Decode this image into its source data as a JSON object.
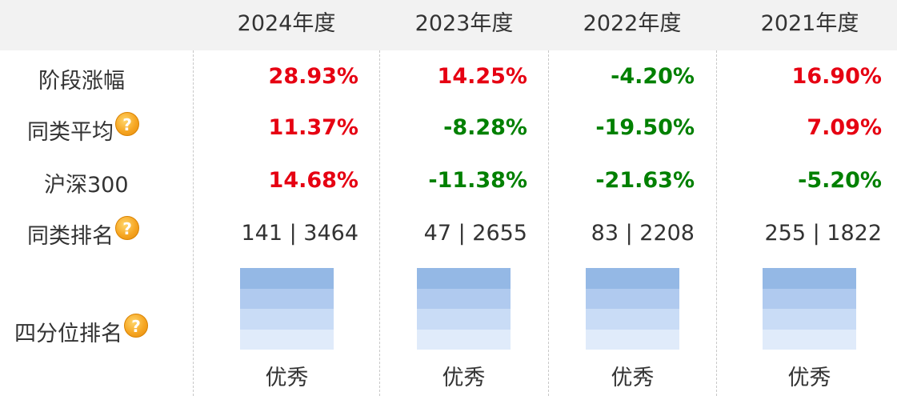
{
  "header": {
    "columns": [
      "2024年度",
      "2023年度",
      "2022年度",
      "2021年度"
    ]
  },
  "colors": {
    "up": "#e60012",
    "down": "#008000",
    "neutral": "#333333",
    "quartile_bands": [
      "#94b8e5",
      "#b0caef",
      "#c9dcf6",
      "#e0ebfa"
    ]
  },
  "rows": {
    "period_change": {
      "label": "阶段涨幅",
      "values": [
        "28.93%",
        "14.25%",
        "-4.20%",
        "16.90%"
      ]
    },
    "peer_average": {
      "label": "同类平均",
      "help_icon": "help-icon",
      "values": [
        "11.37%",
        "-8.28%",
        "-19.50%",
        "7.09%"
      ]
    },
    "csi300": {
      "label": "沪深300",
      "values": [
        "14.68%",
        "-11.38%",
        "-21.63%",
        "-5.20%"
      ]
    },
    "peer_rank": {
      "label": "同类排名",
      "help_icon": "help-icon",
      "values": [
        "141 | 3464",
        "47 | 2655",
        "83 | 2208",
        "255 | 1822"
      ]
    },
    "quartile_rank": {
      "label": "四分位排名",
      "help_icon": "help-icon",
      "values": [
        "优秀",
        "优秀",
        "优秀",
        "优秀"
      ],
      "levels": [
        4,
        4,
        4,
        4
      ]
    }
  },
  "help_glyph": "?"
}
